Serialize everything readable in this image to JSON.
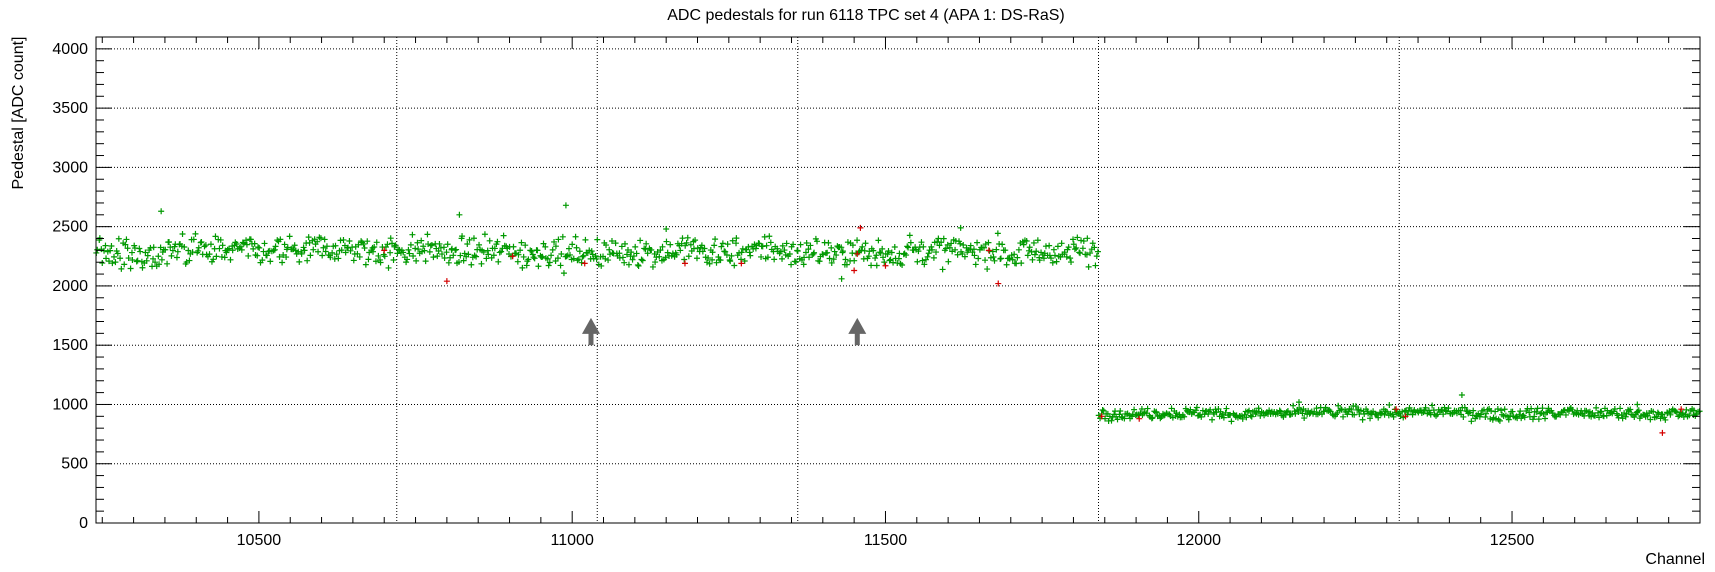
{
  "chart_data": {
    "type": "scatter",
    "title": "ADC pedestals for run 6118 TPC set 4 (APA 1: DS-RaS)",
    "xlabel": "Channel",
    "ylabel": "Pedestal [ADC count]",
    "xlim": [
      10240,
      12800
    ],
    "ylim": [
      0,
      4100
    ],
    "x_ticks": [
      10500,
      11000,
      11500,
      12000,
      12500
    ],
    "y_ticks": [
      0,
      500,
      1000,
      1500,
      2000,
      2500,
      3000,
      3500,
      4000
    ],
    "x_gridlines": [
      10240,
      10720,
      11040,
      11360,
      11840,
      12320,
      12800
    ],
    "y_gridlines": [
      500,
      1000,
      1500,
      2000,
      2500,
      3000,
      3500,
      4000
    ],
    "grid": true,
    "series": [
      {
        "color": "#009900",
        "marker": "+",
        "segments": [
          {
            "x_start": 10240,
            "x_end": 11840,
            "mean": 2290,
            "spread": 110,
            "outliers": [
              [
                10344,
                2630
              ],
              [
                10820,
                2600
              ],
              [
                10990,
                2680
              ],
              [
                11150,
                2480
              ],
              [
                11430,
                2060
              ],
              [
                11620,
                2490
              ]
            ]
          },
          {
            "x_start": 11840,
            "x_end": 12800,
            "mean": 925,
            "spread": 45,
            "outliers": [
              [
                12160,
                1020
              ],
              [
                12420,
                1080
              ],
              [
                12700,
                1000
              ]
            ]
          }
        ]
      },
      {
        "color": "#d40000",
        "marker": "+",
        "points": [
          [
            10700,
            2300
          ],
          [
            10800,
            2040
          ],
          [
            10905,
            2250
          ],
          [
            11020,
            2190
          ],
          [
            11180,
            2190
          ],
          [
            11270,
            2190
          ],
          [
            11455,
            2270
          ],
          [
            11460,
            2490
          ],
          [
            11500,
            2170
          ],
          [
            11665,
            2300
          ],
          [
            11680,
            2020
          ],
          [
            11450,
            2130
          ],
          [
            11845,
            900
          ],
          [
            11905,
            880
          ],
          [
            12315,
            960
          ],
          [
            12330,
            900
          ],
          [
            12740,
            760
          ],
          [
            12770,
            960
          ]
        ]
      }
    ],
    "annotations": [
      {
        "type": "arrow",
        "x": 11030,
        "y_from": 1500,
        "y_to": 1730,
        "color": "#666666"
      },
      {
        "type": "arrow",
        "x": 11455,
        "y_from": 1500,
        "y_to": 1730,
        "color": "#666666"
      }
    ]
  }
}
